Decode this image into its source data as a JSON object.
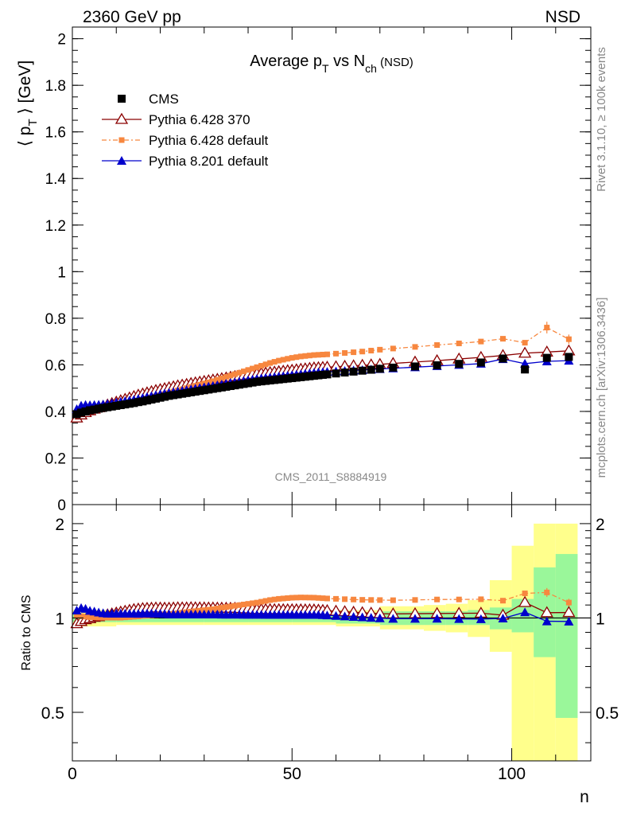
{
  "header": {
    "energy_label": "2360 GeV pp",
    "process_label": "NSD",
    "side_rivet": "Rivet 3.1.10, ≥ 100k events",
    "side_mcplots": "mcplots.cern.ch [arXiv:1306.3436]",
    "analysis_id": "CMS_2011_S8884919"
  },
  "chart_data": [
    {
      "type": "scatter",
      "title_main": "Average p",
      "title_sub1": "T",
      "title_mid": " vs N",
      "title_sub2": "ch",
      "title_tail": " (NSD)",
      "ylabel_left": "⟨ p",
      "ylabel_sub": "T",
      "ylabel_right": " ⟩ [GeV]",
      "xlim": [
        0,
        118
      ],
      "ylim": [
        0,
        2.05
      ],
      "yticks": [
        "0",
        "0.2",
        "0.4",
        "0.6",
        "0.8",
        "1",
        "1.2",
        "1.4",
        "1.6",
        "1.8",
        "2"
      ],
      "legend": [
        {
          "name": "CMS",
          "color": "#000000",
          "marker": "square"
        },
        {
          "name": "Pythia 6.428 370",
          "color": "#8b0000",
          "marker": "triangle-open"
        },
        {
          "name": "Pythia 6.428 default",
          "color": "#f7873f",
          "marker": "square-small"
        },
        {
          "name": "Pythia 8.201 default",
          "color": "#0000cc",
          "marker": "triangle"
        }
      ],
      "series": [
        {
          "name": "CMS",
          "x": [
            1,
            2,
            3,
            4,
            5,
            6,
            7,
            8,
            9,
            10,
            11,
            12,
            13,
            14,
            15,
            16,
            17,
            18,
            19,
            20,
            21,
            22,
            23,
            24,
            25,
            26,
            27,
            28,
            29,
            30,
            31,
            32,
            33,
            34,
            35,
            36,
            37,
            38,
            39,
            40,
            41,
            42,
            43,
            44,
            45,
            46,
            47,
            48,
            49,
            50,
            51,
            52,
            53,
            54,
            55,
            56,
            57,
            58,
            60,
            62,
            64,
            66,
            68,
            70,
            73,
            78,
            83,
            88,
            93,
            98,
            103,
            108,
            113
          ],
          "y": [
            0.388,
            0.395,
            0.4,
            0.405,
            0.408,
            0.412,
            0.415,
            0.418,
            0.421,
            0.424,
            0.427,
            0.43,
            0.433,
            0.436,
            0.44,
            0.443,
            0.447,
            0.451,
            0.455,
            0.459,
            0.463,
            0.467,
            0.47,
            0.473,
            0.476,
            0.479,
            0.482,
            0.485,
            0.488,
            0.491,
            0.494,
            0.497,
            0.5,
            0.503,
            0.506,
            0.509,
            0.512,
            0.515,
            0.518,
            0.521,
            0.524,
            0.527,
            0.529,
            0.531,
            0.533,
            0.535,
            0.537,
            0.539,
            0.541,
            0.543,
            0.545,
            0.547,
            0.549,
            0.551,
            0.553,
            0.555,
            0.557,
            0.559,
            0.563,
            0.567,
            0.571,
            0.575,
            0.579,
            0.583,
            0.588,
            0.593,
            0.598,
            0.604,
            0.61,
            0.627,
            0.58,
            0.63,
            0.634
          ]
        },
        {
          "name": "Pythia 6.428 370",
          "x": [
            1,
            2,
            3,
            4,
            5,
            6,
            7,
            8,
            9,
            10,
            11,
            12,
            13,
            14,
            15,
            16,
            17,
            18,
            19,
            20,
            21,
            22,
            23,
            24,
            25,
            26,
            27,
            28,
            29,
            30,
            31,
            32,
            33,
            34,
            35,
            36,
            37,
            38,
            39,
            40,
            41,
            42,
            43,
            44,
            45,
            46,
            47,
            48,
            49,
            50,
            51,
            52,
            53,
            54,
            55,
            56,
            57,
            58,
            60,
            62,
            64,
            66,
            68,
            70,
            73,
            78,
            83,
            88,
            93,
            98,
            103,
            108,
            113
          ],
          "y": [
            0.372,
            0.385,
            0.395,
            0.403,
            0.41,
            0.416,
            0.422,
            0.428,
            0.434,
            0.44,
            0.446,
            0.452,
            0.458,
            0.464,
            0.47,
            0.475,
            0.48,
            0.485,
            0.49,
            0.494,
            0.498,
            0.502,
            0.506,
            0.51,
            0.513,
            0.516,
            0.52,
            0.523,
            0.526,
            0.529,
            0.532,
            0.535,
            0.538,
            0.541,
            0.544,
            0.547,
            0.55,
            0.552,
            0.554,
            0.557,
            0.559,
            0.561,
            0.563,
            0.565,
            0.567,
            0.569,
            0.571,
            0.573,
            0.575,
            0.577,
            0.579,
            0.581,
            0.583,
            0.585,
            0.587,
            0.588,
            0.589,
            0.59,
            0.592,
            0.594,
            0.596,
            0.598,
            0.6,
            0.602,
            0.606,
            0.612,
            0.618,
            0.625,
            0.632,
            0.64,
            0.65,
            0.655,
            0.66
          ]
        },
        {
          "name": "Pythia 6.428 default",
          "x": [
            1,
            2,
            3,
            4,
            5,
            6,
            7,
            8,
            9,
            10,
            11,
            12,
            13,
            14,
            15,
            16,
            17,
            18,
            19,
            20,
            21,
            22,
            23,
            24,
            25,
            26,
            27,
            28,
            29,
            30,
            31,
            32,
            33,
            34,
            35,
            36,
            37,
            38,
            39,
            40,
            41,
            42,
            43,
            44,
            45,
            46,
            47,
            48,
            49,
            50,
            51,
            52,
            53,
            54,
            55,
            56,
            57,
            58,
            60,
            62,
            64,
            66,
            68,
            70,
            73,
            78,
            83,
            88,
            93,
            98,
            103,
            108,
            113
          ],
          "y": [
            0.395,
            0.4,
            0.404,
            0.407,
            0.41,
            0.413,
            0.416,
            0.419,
            0.422,
            0.425,
            0.428,
            0.432,
            0.436,
            0.44,
            0.445,
            0.45,
            0.455,
            0.46,
            0.465,
            0.47,
            0.475,
            0.48,
            0.485,
            0.49,
            0.495,
            0.5,
            0.505,
            0.51,
            0.515,
            0.52,
            0.525,
            0.53,
            0.536,
            0.542,
            0.548,
            0.554,
            0.56,
            0.566,
            0.572,
            0.578,
            0.584,
            0.59,
            0.596,
            0.602,
            0.608,
            0.613,
            0.618,
            0.622,
            0.626,
            0.63,
            0.633,
            0.636,
            0.638,
            0.64,
            0.642,
            0.643,
            0.644,
            0.645,
            0.648,
            0.651,
            0.654,
            0.657,
            0.661,
            0.665,
            0.67,
            0.677,
            0.685,
            0.692,
            0.7,
            0.712,
            0.695,
            0.76,
            0.71
          ]
        },
        {
          "name": "Pythia 8.201 default",
          "x": [
            1,
            2,
            3,
            4,
            5,
            6,
            7,
            8,
            9,
            10,
            11,
            12,
            13,
            14,
            15,
            16,
            17,
            18,
            19,
            20,
            21,
            22,
            23,
            24,
            25,
            26,
            27,
            28,
            29,
            30,
            31,
            32,
            33,
            34,
            35,
            36,
            37,
            38,
            39,
            40,
            41,
            42,
            43,
            44,
            45,
            46,
            47,
            48,
            49,
            50,
            51,
            52,
            53,
            54,
            55,
            56,
            57,
            58,
            60,
            62,
            64,
            66,
            68,
            70,
            73,
            78,
            83,
            88,
            93,
            98,
            103,
            108,
            113
          ],
          "y": [
            0.41,
            0.425,
            0.428,
            0.427,
            0.428,
            0.429,
            0.43,
            0.432,
            0.435,
            0.438,
            0.441,
            0.444,
            0.447,
            0.45,
            0.454,
            0.458,
            0.462,
            0.466,
            0.47,
            0.474,
            0.477,
            0.48,
            0.483,
            0.486,
            0.489,
            0.492,
            0.495,
            0.498,
            0.501,
            0.504,
            0.507,
            0.51,
            0.513,
            0.516,
            0.519,
            0.522,
            0.525,
            0.528,
            0.531,
            0.534,
            0.537,
            0.54,
            0.542,
            0.544,
            0.546,
            0.548,
            0.55,
            0.552,
            0.554,
            0.556,
            0.558,
            0.56,
            0.562,
            0.564,
            0.566,
            0.568,
            0.569,
            0.57,
            0.572,
            0.574,
            0.576,
            0.578,
            0.58,
            0.582,
            0.585,
            0.59,
            0.595,
            0.6,
            0.605,
            0.625,
            0.605,
            0.615,
            0.618
          ]
        }
      ],
      "error_bars": [
        {
          "series": "Pythia 6.428 default",
          "x": 108,
          "low": 0.735,
          "high": 0.785
        },
        {
          "series": "Pythia 6.428 default",
          "x": 113,
          "low": 0.69,
          "high": 0.73
        }
      ]
    },
    {
      "type": "scatter",
      "ylabel": "Ratio to CMS",
      "xlabel": "n",
      "xlim": [
        0,
        118
      ],
      "ylim": [
        0.35,
        2.3
      ],
      "yticks_left": [
        "0.5",
        "1",
        "2"
      ],
      "yticks_right": [
        "0.5",
        "1",
        "2"
      ],
      "xticks": [
        "0",
        "50",
        "100"
      ],
      "bands": {
        "green_color": "#9af79a",
        "yellow_color": "#ffff8c",
        "x_edges": [
          0,
          10,
          20,
          30,
          40,
          50,
          60,
          70,
          80,
          85,
          90,
          95,
          100,
          105,
          110,
          115
        ],
        "green": [
          [
            0.97,
            1.03
          ],
          [
            0.97,
            1.03
          ],
          [
            0.97,
            1.03
          ],
          [
            0.97,
            1.03
          ],
          [
            0.97,
            1.03
          ],
          [
            0.97,
            1.03
          ],
          [
            0.96,
            1.04
          ],
          [
            0.95,
            1.05
          ],
          [
            0.95,
            1.05
          ],
          [
            0.95,
            1.05
          ],
          [
            0.95,
            1.06
          ],
          [
            0.92,
            1.08
          ],
          [
            0.9,
            1.15
          ],
          [
            0.75,
            1.45
          ],
          [
            0.48,
            1.6
          ]
        ],
        "yellow": [
          [
            0.94,
            1.06
          ],
          [
            0.95,
            1.05
          ],
          [
            0.95,
            1.05
          ],
          [
            0.95,
            1.05
          ],
          [
            0.95,
            1.05
          ],
          [
            0.95,
            1.05
          ],
          [
            0.94,
            1.06
          ],
          [
            0.92,
            1.09
          ],
          [
            0.91,
            1.1
          ],
          [
            0.9,
            1.11
          ],
          [
            0.87,
            1.14
          ],
          [
            0.78,
            1.32
          ],
          [
            0.35,
            1.7
          ],
          [
            0.35,
            2.0
          ],
          [
            0.35,
            2.0
          ]
        ]
      }
    }
  ]
}
